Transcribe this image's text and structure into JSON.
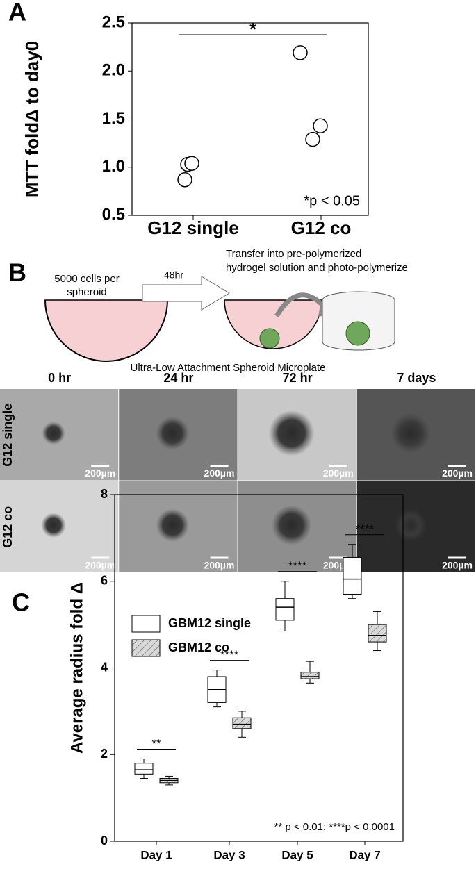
{
  "chart_data": [
    {
      "type": "scatter",
      "panel_label": "A",
      "ylabel": "MTT foldΔ to day0",
      "categories": [
        "G12 single",
        "G12 co"
      ],
      "values": [
        [
          0.87,
          1.03,
          1.04
        ],
        [
          2.19,
          1.29,
          1.43
        ]
      ],
      "ylim": [
        0.5,
        2.5
      ],
      "yticks": [
        0.5,
        {
          "value": 1,
          "label": "1.0"
        },
        1.5,
        {
          "value": 2,
          "label": "2.0"
        },
        2.5
      ],
      "significance": "*",
      "note": "*p < 0.05"
    },
    {
      "type": "box",
      "panel_label": "C",
      "ylabel": "Average radius fold Δ",
      "categories": [
        "Day 1",
        "Day 3",
        "Day 5",
        "Day 7"
      ],
      "series": [
        {
          "name": "GBM12 single",
          "color": "#ffffff",
          "hatch": false,
          "boxes": [
            {
              "min": 1.45,
              "q1": 1.55,
              "median": 1.65,
              "q3": 1.8,
              "max": 1.9
            },
            {
              "min": 3.1,
              "q1": 3.2,
              "median": 3.5,
              "q3": 3.8,
              "max": 3.95
            },
            {
              "min": 4.85,
              "q1": 5.1,
              "median": 5.4,
              "q3": 5.6,
              "max": 6.0
            },
            {
              "min": 5.6,
              "q1": 5.7,
              "median": 6.05,
              "q3": 6.55,
              "max": 6.85
            }
          ]
        },
        {
          "name": "GBM12 co",
          "color": "#d9d9d9",
          "hatch": true,
          "boxes": [
            {
              "min": 1.3,
              "q1": 1.35,
              "median": 1.4,
              "q3": 1.45,
              "max": 1.5
            },
            {
              "min": 2.4,
              "q1": 2.6,
              "median": 2.7,
              "q3": 2.85,
              "max": 3.0
            },
            {
              "min": 3.65,
              "q1": 3.75,
              "median": 3.8,
              "q3": 3.9,
              "max": 4.15
            },
            {
              "min": 4.4,
              "q1": 4.6,
              "median": 4.75,
              "q3": 5.0,
              "max": 5.3
            }
          ]
        }
      ],
      "ylim": [
        0,
        8
      ],
      "yticks": [
        0,
        2,
        4,
        6,
        8
      ],
      "significance": [
        "**",
        "****",
        "****",
        "****"
      ],
      "note": "** p < 0.01; ****p < 0.0001"
    }
  ],
  "panel_b": {
    "panel_label": "B",
    "well_text": [
      "5000 cells per",
      "spheroid"
    ],
    "arrow_text": "48hr",
    "transfer_text": [
      "Transfer into pre-polymerized",
      "hydrogel solution and photo-polymerize"
    ],
    "plate_text": "Ultra-Low Attachment Spheroid Microplate",
    "columns": [
      "0 hr",
      "24 hr",
      "72 hr",
      "7 days"
    ],
    "rows": [
      "G12 single",
      "G12 co"
    ],
    "scale_bar": "200µm"
  }
}
